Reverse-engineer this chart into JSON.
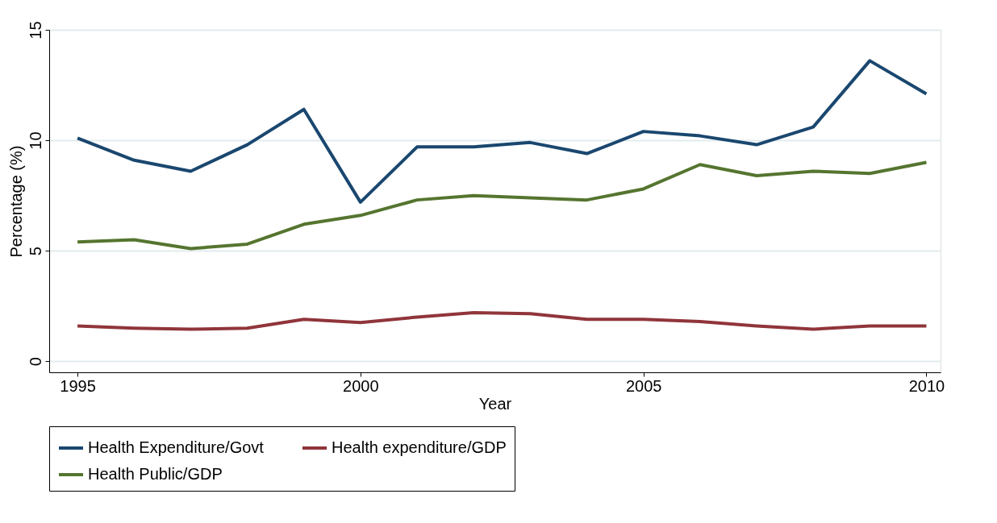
{
  "chart_data": {
    "type": "line",
    "xlabel": "Year",
    "ylabel": "Percentage (%)",
    "x": [
      1995,
      1996,
      1997,
      1998,
      1999,
      2000,
      2001,
      2002,
      2003,
      2004,
      2005,
      2006,
      2007,
      2008,
      2009,
      2010
    ],
    "series": [
      {
        "name": "Health Expenditure/Govt",
        "color": "#1a476f",
        "values": [
          10.1,
          9.1,
          8.6,
          9.8,
          11.4,
          7.2,
          9.7,
          9.7,
          9.9,
          9.4,
          10.4,
          10.2,
          9.8,
          10.6,
          13.6,
          12.1
        ]
      },
      {
        "name": "Health expenditure/GDP",
        "color": "#90353b",
        "values": [
          1.6,
          1.5,
          1.45,
          1.5,
          1.9,
          1.75,
          2.0,
          2.2,
          2.15,
          1.9,
          1.9,
          1.8,
          1.6,
          1.45,
          1.6,
          1.6
        ]
      },
      {
        "name": "Health Public/GDP",
        "color": "#55752f",
        "values": [
          5.4,
          5.5,
          5.1,
          5.3,
          6.2,
          6.6,
          7.3,
          7.5,
          7.4,
          7.3,
          7.8,
          8.9,
          8.4,
          8.6,
          8.5,
          9.0
        ]
      }
    ],
    "xlim": [
      1994.5,
      2010.25
    ],
    "xticks": [
      1995,
      2000,
      2005,
      2010
    ],
    "ylim": [
      -0.5,
      15
    ],
    "yticks": [
      0,
      5,
      10,
      15
    ],
    "grid": "y",
    "legend": "bottom",
    "marker": "none",
    "line_style": "solid"
  }
}
